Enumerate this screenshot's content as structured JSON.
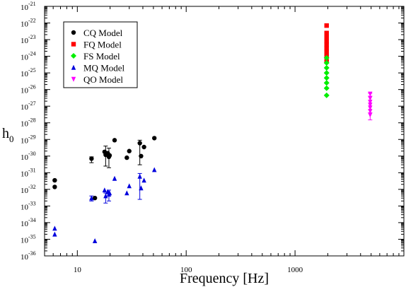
{
  "chart_data": {
    "type": "scatter",
    "xlabel": "Frequency [Hz]",
    "ylabel_main": "h",
    "ylabel_sub": "0",
    "x_scale": "log",
    "y_scale": "log",
    "xlim": [
      5,
      10000
    ],
    "ylim_exp": [
      -36,
      -21
    ],
    "x_ticks": [
      {
        "value": 10,
        "label": "10"
      },
      {
        "value": 100,
        "label": "100"
      },
      {
        "value": 1000,
        "label": "1000"
      }
    ],
    "y_tick_base": "10",
    "y_tick_exponents": [
      "-36",
      "-35",
      "-34",
      "-33",
      "-32",
      "-31",
      "-30",
      "-29",
      "-28",
      "-27",
      "-26",
      "-25",
      "-24",
      "-23",
      "-22",
      "-21"
    ],
    "grid": false,
    "legend_position": "top-left",
    "series": [
      {
        "name": "CQ Model",
        "marker": "circle",
        "color": "#000000",
        "points": [
          {
            "x": 6.2,
            "y": 3.5e-32
          },
          {
            "x": 6.2,
            "y": 1.4e-32
          },
          {
            "x": 13.5,
            "y": 7e-31,
            "err": [
              4e-31,
              9e-31
            ]
          },
          {
            "x": 14.5,
            "y": 3e-33
          },
          {
            "x": 17.8,
            "y": 1.8e-30
          },
          {
            "x": 18.2,
            "y": 1.2e-30,
            "err": [
              2.5e-31,
              4e-30
            ]
          },
          {
            "x": 19.0,
            "y": 1.5e-30
          },
          {
            "x": 19.5,
            "y": 9e-31,
            "err": [
              2e-31,
              3e-30
            ]
          },
          {
            "x": 19.8,
            "y": 1.1e-30
          },
          {
            "x": 22.0,
            "y": 9e-30
          },
          {
            "x": 28.5,
            "y": 8e-31
          },
          {
            "x": 30.0,
            "y": 2e-30
          },
          {
            "x": 37.5,
            "y": 6e-30,
            "err": [
              3e-31,
              9e-30
            ]
          },
          {
            "x": 38.5,
            "y": 1e-30
          },
          {
            "x": 41.0,
            "y": 3.5e-30
          },
          {
            "x": 51.0,
            "y": 1.2e-29
          }
        ]
      },
      {
        "name": "FQ Model",
        "marker": "square",
        "color": "#ff0000",
        "points": [
          {
            "x": 1950,
            "y": 7e-23
          },
          {
            "x": 1950,
            "y": 2.5e-23
          },
          {
            "x": 1950,
            "y": 1.4e-23
          },
          {
            "x": 1950,
            "y": 8e-24
          },
          {
            "x": 1950,
            "y": 5e-24
          },
          {
            "x": 1950,
            "y": 3e-24
          },
          {
            "x": 1950,
            "y": 1.8e-24
          },
          {
            "x": 1950,
            "y": 1e-24
          },
          {
            "x": 1950,
            "y": 5e-25
          }
        ]
      },
      {
        "name": "FS Model",
        "marker": "diamond",
        "color": "#00ee00",
        "points": [
          {
            "x": 1950,
            "y": 8e-25
          },
          {
            "x": 1950,
            "y": 4e-25
          },
          {
            "x": 1950,
            "y": 2e-25
          },
          {
            "x": 1950,
            "y": 1e-25
          },
          {
            "x": 1950,
            "y": 5e-26
          },
          {
            "x": 1950,
            "y": 2.5e-26
          },
          {
            "x": 1950,
            "y": 1.2e-26
          },
          {
            "x": 1950,
            "y": 4.5e-27
          }
        ]
      },
      {
        "name": "MQ Model",
        "marker": "triangle-up",
        "color": "#0000dd",
        "points": [
          {
            "x": 6.2,
            "y": 4.5e-35
          },
          {
            "x": 6.2,
            "y": 2e-35
          },
          {
            "x": 13.5,
            "y": 3e-33,
            "err": [
              2e-33,
              4e-33
            ]
          },
          {
            "x": 14.5,
            "y": 8e-36
          },
          {
            "x": 17.8,
            "y": 9e-33
          },
          {
            "x": 18.2,
            "y": 4e-33,
            "err": [
              1.5e-33,
              6e-33
            ]
          },
          {
            "x": 19.0,
            "y": 7e-33
          },
          {
            "x": 19.5,
            "y": 5e-33,
            "err": [
              2e-33,
              9e-33
            ]
          },
          {
            "x": 19.8,
            "y": 6e-33
          },
          {
            "x": 22.0,
            "y": 4.5e-32
          },
          {
            "x": 28.5,
            "y": 6e-33
          },
          {
            "x": 30.0,
            "y": 1.6e-32
          },
          {
            "x": 37.5,
            "y": 6e-32,
            "err": [
              2.5e-33,
              9e-32
            ]
          },
          {
            "x": 38.5,
            "y": 1.2e-32
          },
          {
            "x": 41.0,
            "y": 3.5e-32
          },
          {
            "x": 51.0,
            "y": 1.5e-31
          }
        ]
      },
      {
        "name": "QO Model",
        "marker": "triangle-down",
        "color": "#ff00ff",
        "points": [
          {
            "x": 4900,
            "y": 5.5e-27,
            "err": [
              4e-27,
              6e-27
            ]
          },
          {
            "x": 4900,
            "y": 3e-27
          },
          {
            "x": 4900,
            "y": 1.8e-27
          },
          {
            "x": 4900,
            "y": 1.2e-27
          },
          {
            "x": 4900,
            "y": 8e-28
          },
          {
            "x": 4900,
            "y": 5e-28
          },
          {
            "x": 4900,
            "y": 3e-28,
            "err": [
              1.5e-28,
              4e-28
            ]
          }
        ]
      }
    ]
  }
}
